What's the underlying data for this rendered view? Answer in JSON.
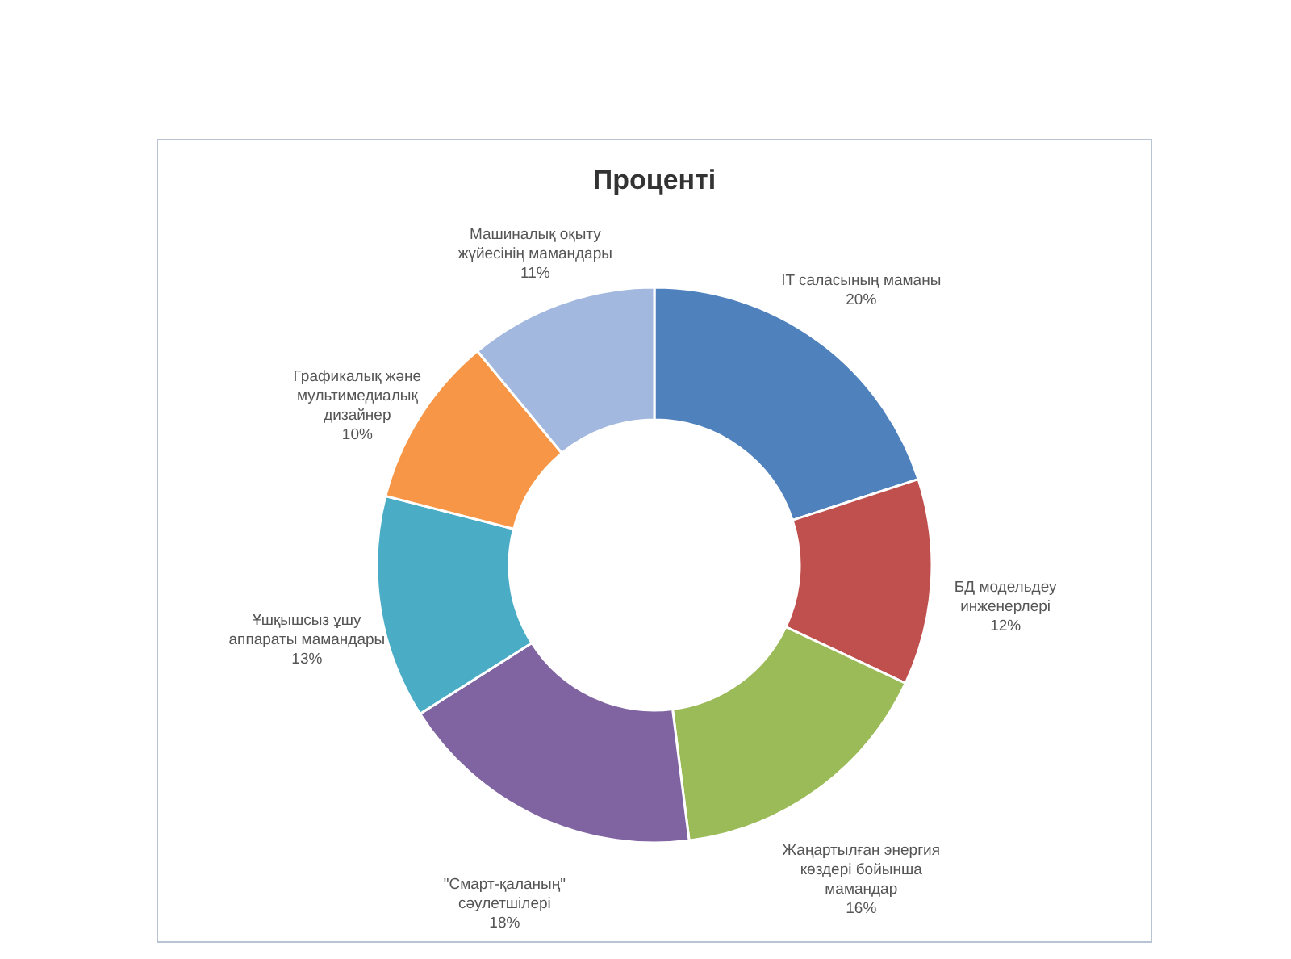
{
  "chart_data": {
    "type": "donut",
    "title": "Проценті",
    "categories": [
      "IT саласының маманы",
      "БД модельдеу инженерлері",
      "Жаңартылған энергия көздері бойынша мамандар",
      "\"Смарт-қаланың\" сәулетшілері",
      "Ұшқышсыз ұшу аппараты мамандары",
      "Графикалық және мультимедиалық дизайнер",
      "Машиналық оқыту жүйесінің мамандары"
    ],
    "values": [
      20,
      12,
      16,
      18,
      13,
      10,
      11
    ],
    "colors": [
      "#4f81bd",
      "#c0504d",
      "#9bbb59",
      "#8064a2",
      "#4bacc6",
      "#f79646",
      "#a3b8de"
    ],
    "value_labels": [
      "20%",
      "12%",
      "16%",
      "18%",
      "13%",
      "10%",
      "11%"
    ],
    "legend": false
  }
}
